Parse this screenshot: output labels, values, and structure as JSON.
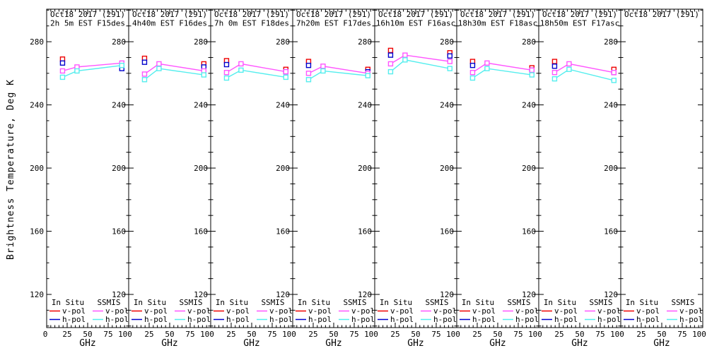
{
  "window": {
    "background": "#ffffff"
  },
  "chart_data": {
    "type": "line",
    "ylabel": "Brightness Temperature, Deg K",
    "xlabel": "GHz",
    "x_range": [
      0,
      100
    ],
    "y_range": [
      99,
      300.6
    ],
    "x_major_ticks": [
      0,
      25,
      50,
      75,
      100
    ],
    "x_minor_step": 5,
    "y_major_ticks": [
      120,
      160,
      200,
      240,
      280
    ],
    "y_minor_step": 10,
    "grid": false,
    "frequencies_ghz": [
      19.35,
      37.0,
      91.655
    ],
    "series_defs": [
      {
        "key": "in_situ_v_pol",
        "name": "In Situ v-pol",
        "color": "#ee0000",
        "style": "points"
      },
      {
        "key": "in_situ_h_pol",
        "name": "In Situ h-pol",
        "color": "#0000cc",
        "style": "points"
      },
      {
        "key": "ssmis_v_pol",
        "name": "SSMIS v-pol",
        "color": "#ff55ff",
        "style": "line-points"
      },
      {
        "key": "ssmis_h_pol",
        "name": "SSMIS h-pol",
        "color": "#55eeee",
        "style": "line-points"
      }
    ],
    "panels": [
      {
        "title_line1": "Oct18 2017 (291)",
        "title_line2": "2h 5m EST F15des",
        "series": {
          "in_situ_v_pol": [
            [
              19.35,
              269.0
            ]
          ],
          "in_situ_h_pol": [
            [
              19.35,
              266.5
            ],
            [
              91.655,
              263.0
            ]
          ],
          "ssmis_v_pol": [
            [
              19.35,
              261.5
            ],
            [
              37.0,
              264.0
            ],
            [
              91.655,
              266.5
            ]
          ],
          "ssmis_h_pol": [
            [
              19.35,
              257.5
            ],
            [
              37.0,
              261.5
            ],
            [
              91.655,
              265.0
            ]
          ]
        }
      },
      {
        "title_line1": "Oct18 2017 (291)",
        "title_line2": "4h40m EST F16des",
        "series": {
          "in_situ_v_pol": [
            [
              19.35,
              269.5
            ],
            [
              91.655,
              266.0
            ]
          ],
          "in_situ_h_pol": [
            [
              19.35,
              267.0
            ],
            [
              91.655,
              264.0
            ]
          ],
          "ssmis_v_pol": [
            [
              19.35,
              259.5
            ],
            [
              37.0,
              266.0
            ],
            [
              91.655,
              261.5
            ]
          ],
          "ssmis_h_pol": [
            [
              19.35,
              256.0
            ],
            [
              37.0,
              263.0
            ],
            [
              91.655,
              259.0
            ]
          ]
        }
      },
      {
        "title_line1": "Oct18 2017 (291)",
        "title_line2": "7h 0m EST F18des",
        "series": {
          "in_situ_v_pol": [
            [
              19.35,
              268.0
            ],
            [
              91.655,
              262.5
            ]
          ],
          "in_situ_h_pol": [
            [
              19.35,
              265.5
            ],
            [
              91.655,
              261.0
            ]
          ],
          "ssmis_v_pol": [
            [
              19.35,
              260.5
            ],
            [
              37.0,
              266.0
            ],
            [
              91.655,
              261.0
            ]
          ],
          "ssmis_h_pol": [
            [
              19.35,
              257.0
            ],
            [
              37.0,
              262.0
            ],
            [
              91.655,
              257.5
            ]
          ]
        }
      },
      {
        "title_line1": "Oct18 2017 (291)",
        "title_line2": "7h20m EST F17des",
        "series": {
          "in_situ_v_pol": [
            [
              19.35,
              267.5
            ],
            [
              91.655,
              262.5
            ]
          ],
          "in_situ_h_pol": [
            [
              19.35,
              265.0
            ],
            [
              91.655,
              261.0
            ]
          ],
          "ssmis_v_pol": [
            [
              19.35,
              260.0
            ],
            [
              37.0,
              264.5
            ],
            [
              91.655,
              260.0
            ]
          ],
          "ssmis_h_pol": [
            [
              19.35,
              256.0
            ],
            [
              37.0,
              261.5
            ],
            [
              91.655,
              258.5
            ]
          ]
        }
      },
      {
        "title_line1": "Oct18 2017 (291)",
        "title_line2": "16h10m EST F16asc",
        "series": {
          "in_situ_v_pol": [
            [
              19.35,
              274.5
            ],
            [
              91.655,
              273.0
            ]
          ],
          "in_situ_h_pol": [
            [
              19.35,
              271.5
            ],
            [
              91.655,
              271.0
            ]
          ],
          "ssmis_v_pol": [
            [
              19.35,
              266.0
            ],
            [
              37.0,
              271.5
            ],
            [
              91.655,
              267.5
            ]
          ],
          "ssmis_h_pol": [
            [
              19.35,
              261.0
            ],
            [
              37.0,
              268.5
            ],
            [
              91.655,
              263.0
            ]
          ]
        }
      },
      {
        "title_line1": "Oct18 2017 (291)",
        "title_line2": "18h30m EST F18asc",
        "series": {
          "in_situ_v_pol": [
            [
              19.35,
              267.5
            ],
            [
              91.655,
              263.5
            ]
          ],
          "in_situ_h_pol": [
            [
              19.35,
              265.0
            ],
            [
              91.655,
              262.0
            ]
          ],
          "ssmis_v_pol": [
            [
              19.35,
              260.5
            ],
            [
              37.0,
              266.5
            ],
            [
              91.655,
              262.0
            ]
          ],
          "ssmis_h_pol": [
            [
              19.35,
              257.0
            ],
            [
              37.0,
              263.0
            ],
            [
              91.655,
              259.0
            ]
          ]
        }
      },
      {
        "title_line1": "Oct18 2017 (291)",
        "title_line2": "18h50m EST F17asc",
        "series": {
          "in_situ_v_pol": [
            [
              19.35,
              267.5
            ],
            [
              91.655,
              262.5
            ]
          ],
          "in_situ_h_pol": [
            [
              19.35,
              264.5
            ],
            [
              91.655,
              260.5
            ]
          ],
          "ssmis_v_pol": [
            [
              19.35,
              260.5
            ],
            [
              37.0,
              266.0
            ],
            [
              91.655,
              260.5
            ]
          ],
          "ssmis_h_pol": [
            [
              19.35,
              256.5
            ],
            [
              37.0,
              262.5
            ],
            [
              91.655,
              255.5
            ]
          ]
        }
      },
      {
        "title_line1": "Oct18 2017 (291)",
        "title_line2": "",
        "series": {
          "in_situ_v_pol": [],
          "in_situ_h_pol": [],
          "ssmis_v_pol": [],
          "ssmis_h_pol": []
        }
      }
    ],
    "legend": {
      "groups": [
        {
          "label": "In Situ",
          "rows": [
            {
              "label": "v-pol",
              "series": "in_situ_v_pol"
            },
            {
              "label": "h-pol",
              "series": "in_situ_h_pol"
            }
          ]
        },
        {
          "label": "SSMIS",
          "rows": [
            {
              "label": "v-pol",
              "series": "ssmis_v_pol"
            },
            {
              "label": "h-pol",
              "series": "ssmis_h_pol"
            }
          ]
        }
      ]
    }
  },
  "colors": {
    "axis": "#000000",
    "text": "#000000",
    "in_situ_v": "#ee0000",
    "in_situ_h": "#0000cc",
    "ssmis_v": "#ff55ff",
    "ssmis_h": "#55eeee"
  }
}
